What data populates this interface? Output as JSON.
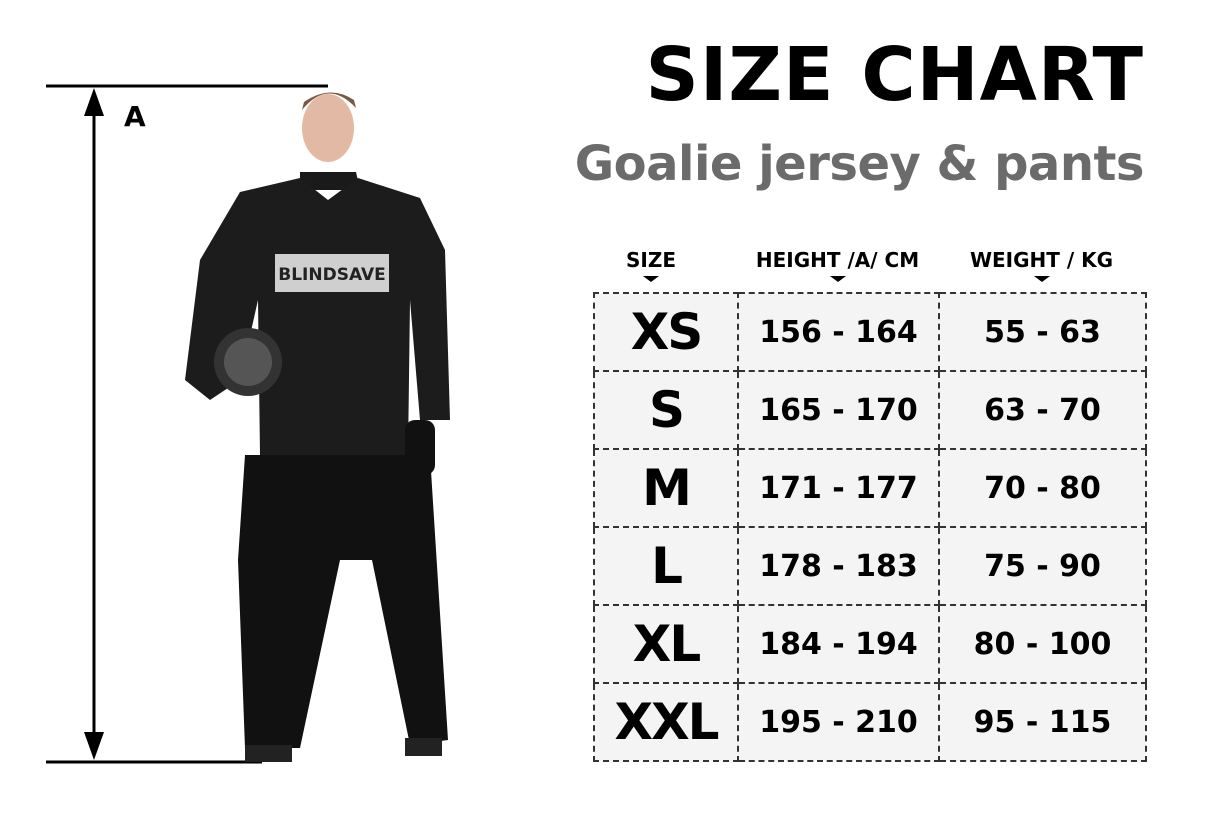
{
  "title": "SIZE CHART",
  "subtitle": "Goalie jersey & pants",
  "measure_label": "A",
  "brand_logo_text": "BLINDSAVE",
  "headers": [
    "SIZE",
    "HEIGHT /A/ CM",
    "WEIGHT / KG"
  ],
  "rows": [
    [
      "XS",
      "156 - 164",
      "55 - 63"
    ],
    [
      "S",
      "165 - 170",
      "63 - 70"
    ],
    [
      "M",
      "171 - 177",
      "70 - 80"
    ],
    [
      "L",
      "178 - 183",
      "75 - 90"
    ],
    [
      "XL",
      "184 - 194",
      "80 - 100"
    ],
    [
      "XXL",
      "195 - 210",
      "95 - 115"
    ]
  ],
  "colors": {
    "subtitle": "#6b6b6b",
    "cell_fill": "#f4f4f4"
  }
}
